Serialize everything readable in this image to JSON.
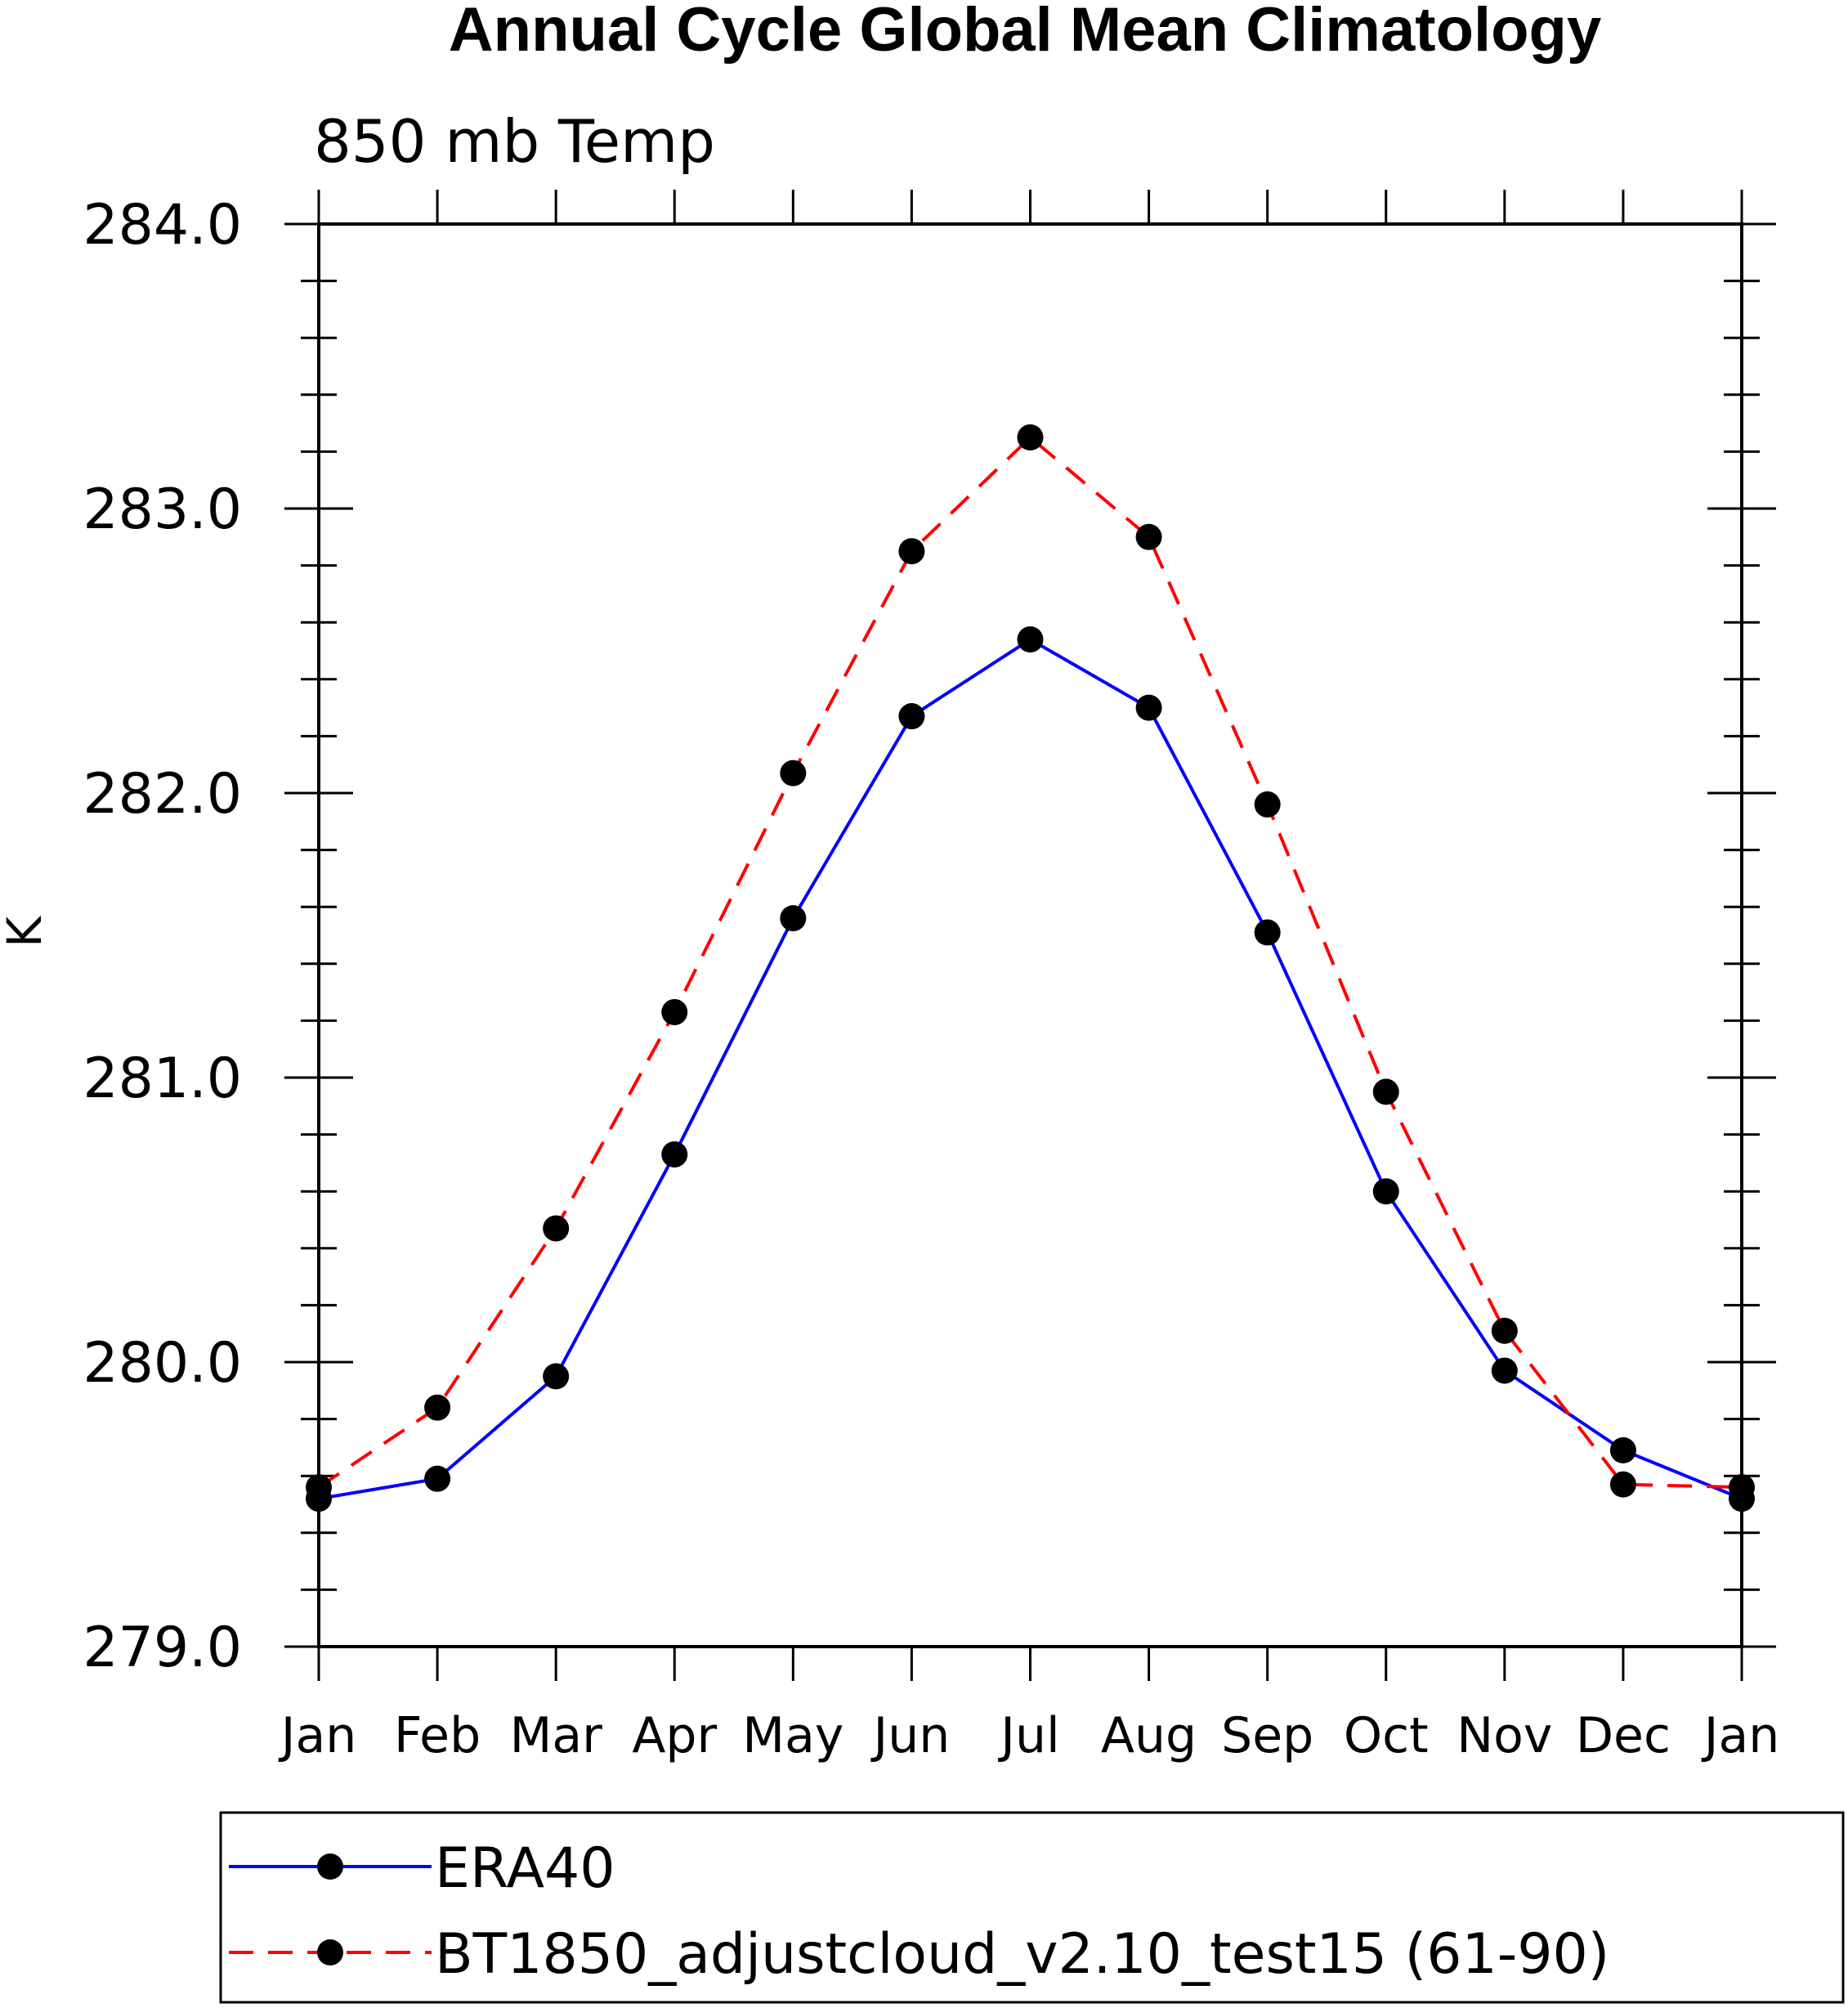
{
  "chart_data": {
    "type": "line",
    "title": "Annual Cycle Global Mean Climatology",
    "subtitle": "850 mb Temp",
    "ylabel": "K",
    "xlabel": "",
    "categories": [
      "Jan",
      "Feb",
      "Mar",
      "Apr",
      "May",
      "Jun",
      "Jul",
      "Aug",
      "Sep",
      "Oct",
      "Nov",
      "Dec",
      "Jan"
    ],
    "ylim": [
      279.0,
      284.0
    ],
    "yticks": [
      "279.0",
      "280.0",
      "281.0",
      "282.0",
      "283.0",
      "284.0"
    ],
    "grid": false,
    "legend_placement": "bottom",
    "series": [
      {
        "name": "ERA40",
        "color": "#0000ff",
        "dash": "solid",
        "marker": "filled-circle",
        "values": [
          279.52,
          279.59,
          279.95,
          280.73,
          281.56,
          282.27,
          282.54,
          282.3,
          281.51,
          280.6,
          279.97,
          279.69,
          279.52
        ]
      },
      {
        "name": "BT1850_adjustcloud_v2.10_test15 (61-90)",
        "color": "#ff0000",
        "dash": "dashed",
        "marker": "filled-circle",
        "values": [
          279.56,
          279.84,
          280.47,
          281.23,
          282.07,
          282.85,
          283.25,
          282.9,
          281.96,
          280.95,
          280.11,
          279.57,
          279.56
        ]
      }
    ]
  }
}
